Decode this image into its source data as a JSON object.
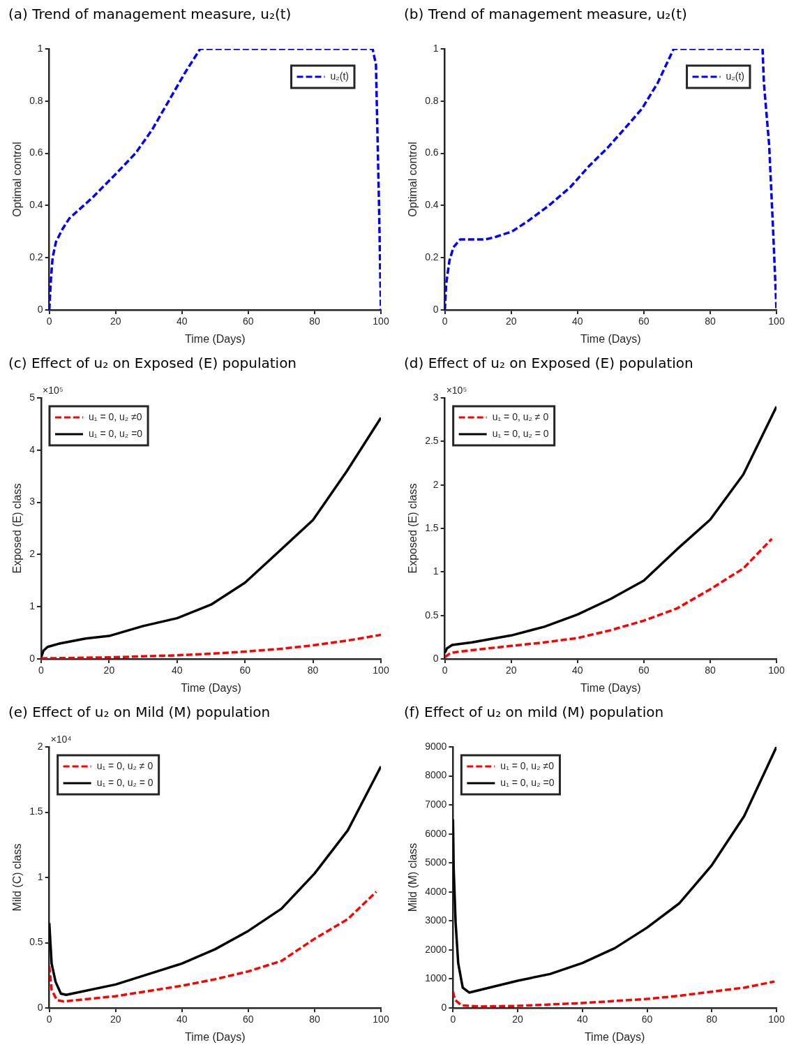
{
  "chart_data": [
    {
      "type": "line",
      "title": "(a) Trend of management measure, u₂(t)",
      "xlabel": "Time (Days)",
      "ylabel": "Optimal control",
      "xlim": [
        0,
        100
      ],
      "xticks": [
        0,
        20,
        40,
        60,
        80,
        100
      ],
      "ylim": [
        0,
        1
      ],
      "yticks": [
        0,
        0.2,
        0.4,
        0.6,
        0.8,
        1
      ],
      "grid": false,
      "legend": "top right",
      "marker": "none",
      "series": [
        {
          "name": "u₂(t)",
          "color": "#0000ff",
          "line_style": "dashed",
          "x": [
            0,
            0.5,
            1,
            2,
            4,
            6,
            13,
            20,
            26,
            31,
            36,
            41,
            45.5,
            60,
            80,
            97.5,
            98.5,
            99.4,
            100
          ],
          "values": [
            0,
            0.12,
            0.2,
            0.26,
            0.31,
            0.35,
            0.43,
            0.52,
            0.6,
            0.69,
            0.8,
            0.91,
            1,
            1,
            1,
            1,
            0.94,
            0.42,
            0
          ]
        }
      ]
    },
    {
      "type": "line",
      "title": "(b) Trend of management measure, u₂(t)",
      "xlabel": "Time (Days)",
      "ylabel": "Optimal control",
      "xlim": [
        0,
        100
      ],
      "xticks": [
        0,
        20,
        40,
        60,
        80,
        100
      ],
      "ylim": [
        0,
        1
      ],
      "yticks": [
        0,
        0.2,
        0.4,
        0.6,
        0.8,
        1
      ],
      "grid": false,
      "legend": "top right",
      "marker": "none",
      "series": [
        {
          "name": "u₂(t)",
          "color": "#0000ff",
          "line_style": "dashed",
          "x": [
            0,
            0.4,
            1.4,
            2.6,
            4.6,
            8.2,
            12.2,
            15.4,
            20.2,
            25,
            31.4,
            37.8,
            43.4,
            49,
            54.6,
            59.4,
            64.2,
            69,
            80,
            95.8,
            96.2,
            97.8,
            99,
            100
          ],
          "values": [
            0,
            0.1,
            0.19,
            0.24,
            0.27,
            0.27,
            0.27,
            0.28,
            0.3,
            0.34,
            0.4,
            0.47,
            0.55,
            0.62,
            0.7,
            0.77,
            0.87,
            1,
            1,
            1,
            0.87,
            0.63,
            0.3,
            0
          ]
        }
      ]
    },
    {
      "type": "line",
      "title": "(c) Effect of u₂ on Exposed (E) population",
      "xlabel": "Time (Days)",
      "ylabel": "Exposed (E) class",
      "annotations": [
        "×10⁵"
      ],
      "xlim": [
        0,
        100
      ],
      "xticks": [
        0,
        20,
        40,
        60,
        80,
        100
      ],
      "ylim": [
        0,
        5
      ],
      "yticks": [
        0,
        1,
        2,
        3,
        4,
        5
      ],
      "grid": false,
      "legend": "top left",
      "marker": "none",
      "series": [
        {
          "name": "u₁ = 0, u₂ ≠0",
          "color": "#ff0000",
          "line_style": "dashed",
          "x": [
            0,
            10,
            20,
            30,
            40,
            50,
            60,
            70,
            80,
            90,
            100
          ],
          "values": [
            0.01,
            0.02,
            0.03,
            0.05,
            0.07,
            0.1,
            0.14,
            0.19,
            0.26,
            0.35,
            0.46
          ]
        },
        {
          "name": "u₁ = 0, u₂ =0",
          "color": "#000000",
          "line_style": "solid",
          "x": [
            0,
            0.7,
            1.9,
            5.1,
            13.1,
            20,
            30,
            40,
            50,
            60,
            70,
            80,
            90,
            100
          ],
          "values": [
            0.03,
            0.16,
            0.23,
            0.29,
            0.39,
            0.44,
            0.63,
            0.78,
            1.04,
            1.46,
            2.06,
            2.66,
            3.6,
            4.62
          ]
        }
      ]
    },
    {
      "type": "line",
      "title": "(d) Effect of u₂ on Exposed (E) population",
      "xlabel": "Time (Days)",
      "ylabel": "Exposed (E) class",
      "annotations": [
        "×10⁵"
      ],
      "xlim": [
        0,
        100
      ],
      "xticks": [
        0,
        20,
        40,
        60,
        80,
        100
      ],
      "ylim": [
        0,
        3
      ],
      "yticks": [
        0,
        0.5,
        1,
        1.5,
        2,
        2.5,
        3
      ],
      "grid": false,
      "legend": "top left",
      "marker": "none",
      "series": [
        {
          "name": "u₁ = 0, u₂ ≠ 0",
          "color": "#ff0000",
          "line_style": "dashed",
          "x": [
            0,
            1.8,
            8,
            20,
            30,
            40,
            50,
            60,
            70,
            80,
            90,
            98.6
          ],
          "values": [
            0.02,
            0.07,
            0.1,
            0.15,
            0.19,
            0.24,
            0.33,
            0.44,
            0.58,
            0.8,
            1.04,
            1.38
          ]
        },
        {
          "name": "u₁ = 0, u₂ = 0",
          "color": "#000000",
          "line_style": "solid",
          "x": [
            0,
            0.6,
            2.2,
            8.2,
            20,
            30,
            40,
            50,
            60,
            70,
            80,
            90,
            100
          ],
          "values": [
            0.07,
            0.12,
            0.16,
            0.19,
            0.27,
            0.37,
            0.51,
            0.69,
            0.9,
            1.26,
            1.6,
            2.12,
            2.9
          ]
        }
      ]
    },
    {
      "type": "line",
      "title": "(e) Effect of u₂ on Mild (M) population",
      "xlabel": "Time (Days)",
      "ylabel": "Mild (C) class",
      "annotations": [
        "×10⁴"
      ],
      "xlim": [
        0,
        100
      ],
      "xticks": [
        0,
        20,
        40,
        60,
        80,
        100
      ],
      "ylim": [
        0,
        2
      ],
      "yticks": [
        0,
        0.5,
        1,
        1.5,
        2
      ],
      "grid": false,
      "legend": "top left",
      "marker": "none",
      "series": [
        {
          "name": "u₁ = 0, u₂ ≠ 0",
          "color": "#ff0000",
          "line_style": "dashed",
          "x": [
            0,
            0.7,
            2.3,
            4.3,
            20,
            30,
            40,
            50,
            60,
            70,
            80,
            90,
            98.6
          ],
          "values": [
            0.32,
            0.14,
            0.06,
            0.05,
            0.09,
            0.13,
            0.17,
            0.22,
            0.28,
            0.36,
            0.53,
            0.68,
            0.89
          ]
        },
        {
          "name": "u₁ = 0, u₂ = 0",
          "color": "#000000",
          "line_style": "solid",
          "x": [
            0,
            0.7,
            1.9,
            3.5,
            5.1,
            20,
            30,
            40,
            50,
            60,
            70,
            80,
            90,
            100
          ],
          "values": [
            0.65,
            0.34,
            0.2,
            0.11,
            0.1,
            0.18,
            0.26,
            0.34,
            0.45,
            0.59,
            0.76,
            1.03,
            1.36,
            1.85
          ]
        }
      ]
    },
    {
      "type": "line",
      "title": "(f) Effect of u₂ on mild (M) population",
      "xlabel": "Time (Days)",
      "ylabel": "Mild (M) class",
      "xlim": [
        0,
        100
      ],
      "xticks": [
        0,
        20,
        40,
        60,
        80,
        100
      ],
      "ylim": [
        0,
        9000
      ],
      "yticks": [
        0,
        1000,
        2000,
        3000,
        4000,
        5000,
        6000,
        7000,
        8000,
        9000
      ],
      "grid": false,
      "legend": "top left",
      "marker": "none",
      "series": [
        {
          "name": "u₁ = 0, u₂ ≠0",
          "color": "#ff0000",
          "line_style": "dashed",
          "x": [
            0,
            0.6,
            2.6,
            8,
            20,
            30,
            40,
            50,
            60,
            70,
            80,
            90,
            99.4
          ],
          "values": [
            560,
            280,
            90,
            50,
            70,
            120,
            170,
            240,
            310,
            420,
            560,
            700,
            910
          ]
        },
        {
          "name": "u₁ = 0, u₂ =0",
          "color": "#000000",
          "line_style": "solid",
          "x": [
            0,
            0.2,
            0.8,
            1.6,
            3,
            5,
            20,
            30,
            40,
            50,
            60,
            70,
            80,
            90,
            100
          ],
          "values": [
            6500,
            4830,
            2950,
            1550,
            700,
            530,
            940,
            1170,
            1550,
            2060,
            2770,
            3610,
            4920,
            6610,
            9000
          ]
        }
      ]
    }
  ]
}
